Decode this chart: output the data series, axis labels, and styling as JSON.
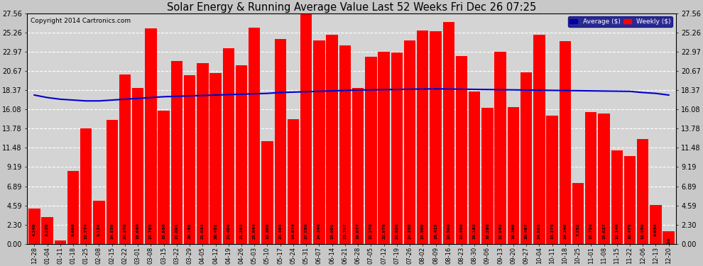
{
  "title": "Solar Energy & Running Average Value Last 52 Weeks Fri Dec 26 07:25",
  "copyright": "Copyright 2014 Cartronics.com",
  "bar_color": "#ff0000",
  "avg_line_color": "#0000cc",
  "background_color": "#c8c8c8",
  "plot_bg_color": "#d4d4d4",
  "grid_color": "#ffffff",
  "yticks": [
    0.0,
    2.3,
    4.59,
    6.89,
    9.19,
    11.48,
    13.78,
    16.08,
    18.37,
    20.67,
    22.97,
    25.26,
    27.56
  ],
  "categories": [
    "12-28",
    "01-04",
    "01-11",
    "01-18",
    "01-25",
    "02-08",
    "02-15",
    "02-22",
    "03-01",
    "03-08",
    "03-15",
    "03-22",
    "03-29",
    "04-05",
    "04-12",
    "04-19",
    "04-26",
    "05-03",
    "05-10",
    "05-17",
    "05-24",
    "05-31",
    "06-07",
    "06-14",
    "06-21",
    "06-28",
    "07-05",
    "07-12",
    "07-19",
    "07-26",
    "08-02",
    "08-09",
    "08-16",
    "08-23",
    "08-30",
    "09-06",
    "09-13",
    "09-20",
    "09-27",
    "10-04",
    "10-11",
    "10-18",
    "10-25",
    "11-01",
    "11-08",
    "11-15",
    "11-22",
    "12-06",
    "12-13",
    "12-20"
  ],
  "bar_values": [
    4.248,
    3.23,
    0.392,
    8.686,
    13.774,
    5.134,
    14.839,
    20.27,
    18.64,
    25.765,
    15.936,
    21.891,
    20.156,
    21.624,
    20.451,
    23.404,
    21.393,
    25.844,
    12.306,
    24.484,
    14.874,
    27.559,
    24.346,
    25.001,
    23.707,
    18.677,
    22.378,
    22.976,
    22.92,
    24.339,
    25.5,
    25.415,
    26.56,
    22.456,
    18.182,
    16.286,
    22.945,
    16.396,
    20.487,
    24.983,
    15.375,
    24.246,
    7.252,
    15.726,
    15.627,
    11.146,
    10.475,
    12.559,
    4.634,
    1.529
  ],
  "avg_line": [
    17.8,
    17.5,
    17.3,
    17.2,
    17.1,
    17.1,
    17.2,
    17.3,
    17.4,
    17.5,
    17.6,
    17.65,
    17.7,
    17.75,
    17.8,
    17.85,
    17.9,
    17.95,
    18.0,
    18.1,
    18.15,
    18.2,
    18.25,
    18.3,
    18.35,
    18.4,
    18.42,
    18.45,
    18.47,
    18.5,
    18.52,
    18.54,
    18.52,
    18.5,
    18.48,
    18.46,
    18.44,
    18.42,
    18.4,
    18.38,
    18.36,
    18.34,
    18.32,
    18.3,
    18.28,
    18.26,
    18.24,
    18.1,
    18.0,
    17.8
  ]
}
